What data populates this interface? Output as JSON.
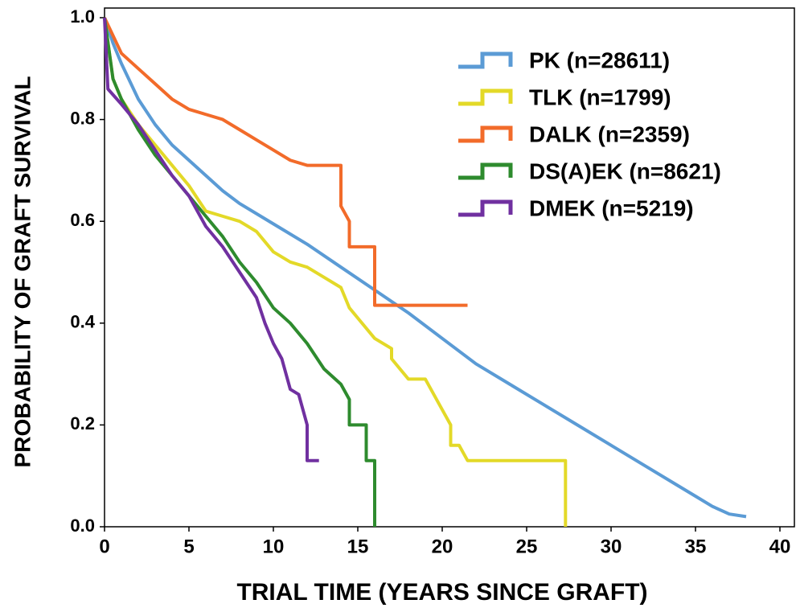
{
  "chart_data": {
    "type": "line",
    "step": true,
    "xlabel": "TRIAL TIME (YEARS SINCE GRAFT)",
    "ylabel": "PROBABILITY OF GRAFT SURVIVAL",
    "xlim": [
      0,
      40
    ],
    "xticks": [
      0,
      5,
      10,
      15,
      20,
      25,
      30,
      35,
      40
    ],
    "ylim": [
      0,
      1
    ],
    "yticks": [
      {
        "value": 0,
        "label": "0.0"
      },
      0.2,
      0.4,
      0.6,
      0.8,
      {
        "value": 1,
        "label": "1.0"
      }
    ],
    "legend": "upper right",
    "series": [
      {
        "name": "PK (n=28611)",
        "color": "#5b9bd5",
        "x": [
          0,
          0.5,
          1,
          2,
          3,
          4,
          5,
          6,
          7,
          8,
          10,
          12,
          14,
          16,
          18,
          20,
          22,
          24,
          26,
          28,
          30,
          32,
          34,
          35,
          36,
          37,
          38
        ],
        "values": [
          1.0,
          0.95,
          0.91,
          0.84,
          0.79,
          0.75,
          0.72,
          0.69,
          0.66,
          0.635,
          0.595,
          0.555,
          0.51,
          0.465,
          0.42,
          0.37,
          0.32,
          0.28,
          0.24,
          0.2,
          0.16,
          0.12,
          0.08,
          0.06,
          0.04,
          0.025,
          0.02
        ]
      },
      {
        "name": "TLK (n=1799)",
        "color": "#e3d928",
        "x": [
          0,
          0.5,
          1,
          2,
          3,
          4,
          5,
          6,
          7,
          8,
          9,
          10,
          11,
          12,
          13,
          14,
          14.5,
          15,
          16,
          17,
          17,
          18,
          19,
          19.5,
          20,
          20.5,
          20.5,
          21,
          21.5,
          27.3,
          27.3
        ],
        "values": [
          1.0,
          0.88,
          0.84,
          0.79,
          0.75,
          0.71,
          0.67,
          0.62,
          0.61,
          0.6,
          0.58,
          0.54,
          0.52,
          0.51,
          0.49,
          0.47,
          0.43,
          0.41,
          0.37,
          0.35,
          0.33,
          0.29,
          0.29,
          0.26,
          0.23,
          0.2,
          0.16,
          0.16,
          0.13,
          0.13,
          0
        ]
      },
      {
        "name": "DALK (n=2359)",
        "color": "#f26b2a",
        "x": [
          0,
          1,
          2,
          3,
          4,
          5,
          6,
          7,
          8,
          9,
          10,
          11,
          12,
          14,
          14,
          14.5,
          14.5,
          16,
          16,
          21.5
        ],
        "values": [
          1.0,
          0.93,
          0.9,
          0.87,
          0.84,
          0.82,
          0.81,
          0.8,
          0.78,
          0.76,
          0.74,
          0.72,
          0.71,
          0.71,
          0.63,
          0.6,
          0.55,
          0.55,
          0.435,
          0.435
        ]
      },
      {
        "name": "DS(A)EK (n=8621)",
        "color": "#2e8b2e",
        "x": [
          0,
          0.5,
          1,
          2,
          3,
          4,
          5,
          6,
          7,
          8,
          9,
          10,
          11,
          12,
          13,
          14,
          14.5,
          14.5,
          15.5,
          15.5,
          16,
          16
        ],
        "values": [
          1.0,
          0.88,
          0.84,
          0.78,
          0.73,
          0.69,
          0.65,
          0.61,
          0.57,
          0.52,
          0.48,
          0.43,
          0.4,
          0.36,
          0.31,
          0.28,
          0.25,
          0.2,
          0.2,
          0.13,
          0.13,
          0
        ]
      },
      {
        "name": "DMEK (n=5219)",
        "color": "#7030a0",
        "x": [
          0,
          0.2,
          1,
          2,
          3,
          4,
          5,
          6,
          7,
          8,
          9,
          9.5,
          10,
          10.5,
          11,
          11.5,
          12,
          12,
          12.7
        ],
        "values": [
          1.0,
          0.86,
          0.83,
          0.79,
          0.74,
          0.69,
          0.65,
          0.59,
          0.55,
          0.5,
          0.45,
          0.4,
          0.36,
          0.33,
          0.27,
          0.26,
          0.2,
          0.13,
          0.13
        ]
      }
    ]
  }
}
